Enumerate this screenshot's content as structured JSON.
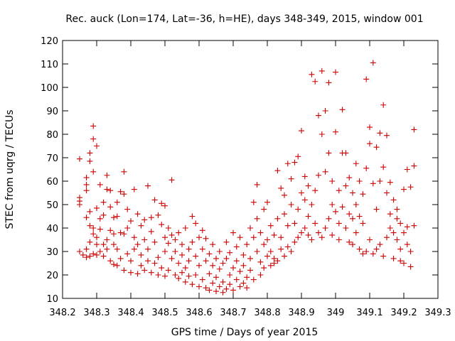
{
  "chart_data": {
    "type": "scatter",
    "title": "Rec. auck (Lon=174, Lat=-36, h=HE), days 348-349, 2015, window 001",
    "xlabel": "GPS time / Days of year 2015",
    "ylabel": "STEC from uqrg / TECUs",
    "xlim": [
      348.2,
      349.3
    ],
    "ylim": [
      10,
      120
    ],
    "x_ticks": [
      "348.2",
      "348.3",
      "348.4",
      "348.5",
      "348.6",
      "348.7",
      "348.8",
      "348.9",
      "349",
      "349.1",
      "349.2",
      "349.3"
    ],
    "y_ticks": [
      "10",
      "20",
      "30",
      "40",
      "50",
      "60",
      "70",
      "80",
      "90",
      "100",
      "110",
      "120"
    ],
    "grid": false,
    "legend": "none",
    "marker": "plus",
    "color": "#cc0000",
    "series": [
      {
        "points": [
          [
            348.25,
            69.5
          ],
          [
            348.25,
            53
          ],
          [
            348.25,
            51.5
          ],
          [
            348.25,
            50
          ],
          [
            348.25,
            30
          ],
          [
            348.26,
            28.5
          ],
          [
            348.27,
            61.5
          ],
          [
            348.27,
            58.5
          ],
          [
            348.27,
            56
          ],
          [
            348.27,
            44.5
          ],
          [
            348.27,
            31
          ],
          [
            348.27,
            27.5
          ],
          [
            348.28,
            72
          ],
          [
            348.28,
            68.5
          ],
          [
            348.28,
            47
          ],
          [
            348.28,
            41
          ],
          [
            348.28,
            34
          ],
          [
            348.28,
            28
          ],
          [
            348.29,
            83.5
          ],
          [
            348.29,
            78
          ],
          [
            348.29,
            64
          ],
          [
            348.29,
            40
          ],
          [
            348.29,
            37.5
          ],
          [
            348.29,
            29
          ],
          [
            348.3,
            75
          ],
          [
            348.3,
            48.5
          ],
          [
            348.3,
            36
          ],
          [
            348.3,
            33
          ],
          [
            348.3,
            28.5
          ],
          [
            348.31,
            58.5
          ],
          [
            348.31,
            44
          ],
          [
            348.31,
            39.5
          ],
          [
            348.31,
            30
          ],
          [
            348.32,
            51
          ],
          [
            348.32,
            45.5
          ],
          [
            348.32,
            33
          ],
          [
            348.32,
            28
          ],
          [
            348.33,
            56.5
          ],
          [
            348.33,
            62.5
          ],
          [
            348.33,
            35
          ],
          [
            348.33,
            31
          ],
          [
            348.34,
            49
          ],
          [
            348.34,
            39
          ],
          [
            348.34,
            56
          ],
          [
            348.34,
            26
          ],
          [
            348.35,
            44.5
          ],
          [
            348.35,
            37.5
          ],
          [
            348.35,
            33
          ],
          [
            348.35,
            24.5
          ],
          [
            348.36,
            51
          ],
          [
            348.36,
            45
          ],
          [
            348.36,
            31
          ],
          [
            348.36,
            24
          ],
          [
            348.37,
            55.5
          ],
          [
            348.37,
            38
          ],
          [
            348.37,
            27
          ],
          [
            348.38,
            54.5
          ],
          [
            348.38,
            64
          ],
          [
            348.38,
            37.5
          ],
          [
            348.38,
            22
          ],
          [
            348.39,
            48
          ],
          [
            348.39,
            29
          ],
          [
            348.39,
            40
          ],
          [
            348.4,
            43
          ],
          [
            348.4,
            26
          ],
          [
            348.4,
            21
          ],
          [
            348.41,
            56.5
          ],
          [
            348.41,
            36
          ],
          [
            348.41,
            31
          ],
          [
            348.42,
            46
          ],
          [
            348.42,
            33
          ],
          [
            348.42,
            20.5
          ],
          [
            348.43,
            41
          ],
          [
            348.43,
            28.5
          ],
          [
            348.43,
            24
          ],
          [
            348.44,
            43.5
          ],
          [
            348.44,
            35
          ],
          [
            348.44,
            22
          ],
          [
            348.45,
            58
          ],
          [
            348.45,
            31
          ],
          [
            348.45,
            26
          ],
          [
            348.46,
            44.5
          ],
          [
            348.46,
            38.5
          ],
          [
            348.46,
            21
          ],
          [
            348.47,
            52
          ],
          [
            348.47,
            34
          ],
          [
            348.47,
            25
          ],
          [
            348.48,
            45.5
          ],
          [
            348.48,
            27.5
          ],
          [
            348.48,
            20
          ],
          [
            348.49,
            50.5
          ],
          [
            348.49,
            41.5
          ],
          [
            348.49,
            23
          ],
          [
            348.5,
            49.5
          ],
          [
            348.5,
            36
          ],
          [
            348.5,
            30
          ],
          [
            348.5,
            19.5
          ],
          [
            348.51,
            40
          ],
          [
            348.51,
            33.5
          ],
          [
            348.51,
            22
          ],
          [
            348.52,
            60.5
          ],
          [
            348.52,
            37
          ],
          [
            348.52,
            27
          ],
          [
            348.53,
            35
          ],
          [
            348.53,
            30
          ],
          [
            348.53,
            20
          ],
          [
            348.54,
            38
          ],
          [
            348.54,
            25
          ],
          [
            348.54,
            18.5
          ],
          [
            348.55,
            33
          ],
          [
            348.55,
            28.5
          ],
          [
            348.55,
            21
          ],
          [
            348.56,
            40
          ],
          [
            348.56,
            23
          ],
          [
            348.56,
            17
          ],
          [
            348.57,
            31
          ],
          [
            348.57,
            26
          ],
          [
            348.57,
            19.5
          ],
          [
            348.58,
            45
          ],
          [
            348.58,
            34
          ],
          [
            348.58,
            16
          ],
          [
            348.59,
            42
          ],
          [
            348.59,
            28
          ],
          [
            348.59,
            20
          ],
          [
            348.6,
            36
          ],
          [
            348.6,
            24
          ],
          [
            348.6,
            15
          ],
          [
            348.61,
            39
          ],
          [
            348.61,
            31
          ],
          [
            348.61,
            18
          ],
          [
            348.62,
            35.5
          ],
          [
            348.62,
            26
          ],
          [
            348.62,
            14.5
          ],
          [
            348.63,
            29
          ],
          [
            348.63,
            20.5
          ],
          [
            348.63,
            13.5
          ],
          [
            348.64,
            33
          ],
          [
            348.64,
            24
          ],
          [
            348.64,
            16.5
          ],
          [
            348.65,
            27
          ],
          [
            348.65,
            19
          ],
          [
            348.65,
            13
          ],
          [
            348.66,
            30
          ],
          [
            348.66,
            22.5
          ],
          [
            348.66,
            15
          ],
          [
            348.67,
            25
          ],
          [
            348.67,
            17
          ],
          [
            348.67,
            12.5
          ],
          [
            348.68,
            34
          ],
          [
            348.68,
            27
          ],
          [
            348.68,
            14
          ],
          [
            348.69,
            29.5
          ],
          [
            348.69,
            20
          ],
          [
            348.69,
            16
          ],
          [
            348.7,
            38
          ],
          [
            348.7,
            23
          ],
          [
            348.7,
            13.5
          ],
          [
            348.71,
            32
          ],
          [
            348.71,
            26
          ],
          [
            348.71,
            18
          ],
          [
            348.72,
            36
          ],
          [
            348.72,
            21.5
          ],
          [
            348.72,
            15
          ],
          [
            348.73,
            28.5
          ],
          [
            348.73,
            24
          ],
          [
            348.73,
            16.5
          ],
          [
            348.74,
            33
          ],
          [
            348.74,
            19
          ],
          [
            348.74,
            14.5
          ],
          [
            348.75,
            40
          ],
          [
            348.75,
            27
          ],
          [
            348.75,
            22
          ],
          [
            348.76,
            51
          ],
          [
            348.76,
            36
          ],
          [
            348.76,
            18
          ],
          [
            348.77,
            58.5
          ],
          [
            348.77,
            44
          ],
          [
            348.77,
            30
          ],
          [
            348.78,
            38
          ],
          [
            348.78,
            25.5
          ],
          [
            348.78,
            20
          ],
          [
            348.79,
            48
          ],
          [
            348.79,
            33
          ],
          [
            348.79,
            23
          ],
          [
            348.8,
            51
          ],
          [
            348.8,
            35
          ],
          [
            348.8,
            28
          ],
          [
            348.81,
            41
          ],
          [
            348.81,
            30
          ],
          [
            348.81,
            24
          ],
          [
            348.82,
            37
          ],
          [
            348.82,
            27
          ],
          [
            348.82,
            25
          ],
          [
            348.83,
            64.5
          ],
          [
            348.83,
            44
          ],
          [
            348.83,
            26
          ],
          [
            348.84,
            57
          ],
          [
            348.84,
            36
          ],
          [
            348.84,
            31
          ],
          [
            348.85,
            54
          ],
          [
            348.85,
            46
          ],
          [
            348.85,
            28
          ],
          [
            348.86,
            67.5
          ],
          [
            348.86,
            41
          ],
          [
            348.86,
            32
          ],
          [
            348.87,
            61
          ],
          [
            348.87,
            50
          ],
          [
            348.87,
            30
          ],
          [
            348.88,
            68
          ],
          [
            348.88,
            42
          ],
          [
            348.88,
            34
          ],
          [
            348.89,
            70.5
          ],
          [
            348.89,
            48
          ],
          [
            348.89,
            36
          ],
          [
            348.9,
            81.5
          ],
          [
            348.9,
            55
          ],
          [
            348.9,
            38
          ],
          [
            348.91,
            62
          ],
          [
            348.91,
            52
          ],
          [
            348.91,
            40
          ],
          [
            348.92,
            58
          ],
          [
            348.92,
            45
          ],
          [
            348.92,
            37
          ],
          [
            348.93,
            105.5
          ],
          [
            348.93,
            50
          ],
          [
            348.93,
            35
          ],
          [
            348.94,
            102.5
          ],
          [
            348.94,
            56
          ],
          [
            348.94,
            42
          ],
          [
            348.95,
            88
          ],
          [
            348.95,
            62.5
          ],
          [
            348.95,
            38
          ],
          [
            348.96,
            107
          ],
          [
            348.96,
            80
          ],
          [
            348.96,
            36
          ],
          [
            348.97,
            90
          ],
          [
            348.97,
            64
          ],
          [
            348.97,
            40
          ],
          [
            348.98,
            102
          ],
          [
            348.98,
            72
          ],
          [
            348.98,
            44
          ],
          [
            348.99,
            60
          ],
          [
            348.99,
            50
          ],
          [
            348.99,
            37
          ],
          [
            349,
            106.5
          ],
          [
            349,
            81
          ],
          [
            349,
            47
          ],
          [
            349.01,
            56
          ],
          [
            349.01,
            42
          ],
          [
            349.01,
            35
          ],
          [
            349.02,
            90.5
          ],
          [
            349.02,
            72
          ],
          [
            349.02,
            49
          ],
          [
            349.03,
            72
          ],
          [
            349.03,
            58
          ],
          [
            349.03,
            40
          ],
          [
            349.04,
            61.5
          ],
          [
            349.04,
            46
          ],
          [
            349.04,
            34
          ],
          [
            349.05,
            55
          ],
          [
            349.05,
            44
          ],
          [
            349.05,
            33
          ],
          [
            349.06,
            67.5
          ],
          [
            349.06,
            50
          ],
          [
            349.06,
            38
          ],
          [
            349.07,
            60
          ],
          [
            349.07,
            45
          ],
          [
            349.07,
            31
          ],
          [
            349.08,
            54.5
          ],
          [
            349.08,
            42
          ],
          [
            349.08,
            29
          ],
          [
            349.09,
            103.5
          ],
          [
            349.09,
            65.5
          ],
          [
            349.09,
            30
          ],
          [
            349.1,
            76
          ],
          [
            349.1,
            83
          ],
          [
            349.1,
            35
          ],
          [
            349.11,
            110.5
          ],
          [
            349.11,
            59
          ],
          [
            349.11,
            29
          ],
          [
            349.12,
            74.5
          ],
          [
            349.12,
            48
          ],
          [
            349.12,
            31
          ],
          [
            349.13,
            80.5
          ],
          [
            349.13,
            60
          ],
          [
            349.13,
            33
          ],
          [
            349.14,
            92.5
          ],
          [
            349.14,
            66
          ],
          [
            349.14,
            28
          ],
          [
            349.15,
            79.5
          ],
          [
            349.15,
            55
          ],
          [
            349.15,
            36
          ],
          [
            349.16,
            59.5
          ],
          [
            349.16,
            46
          ],
          [
            349.16,
            40
          ],
          [
            349.17,
            52
          ],
          [
            349.17,
            38
          ],
          [
            349.17,
            27
          ],
          [
            349.18,
            48
          ],
          [
            349.18,
            44
          ],
          [
            349.18,
            35
          ],
          [
            349.19,
            42
          ],
          [
            349.19,
            31
          ],
          [
            349.19,
            26
          ],
          [
            349.2,
            56.5
          ],
          [
            349.2,
            38
          ],
          [
            349.2,
            25
          ],
          [
            349.21,
            65
          ],
          [
            349.21,
            40.5
          ],
          [
            349.21,
            33
          ],
          [
            349.22,
            57.5
          ],
          [
            349.22,
            30
          ],
          [
            349.22,
            23.5
          ],
          [
            349.23,
            82
          ],
          [
            349.23,
            66.5
          ],
          [
            349.23,
            41
          ]
        ]
      }
    ]
  }
}
